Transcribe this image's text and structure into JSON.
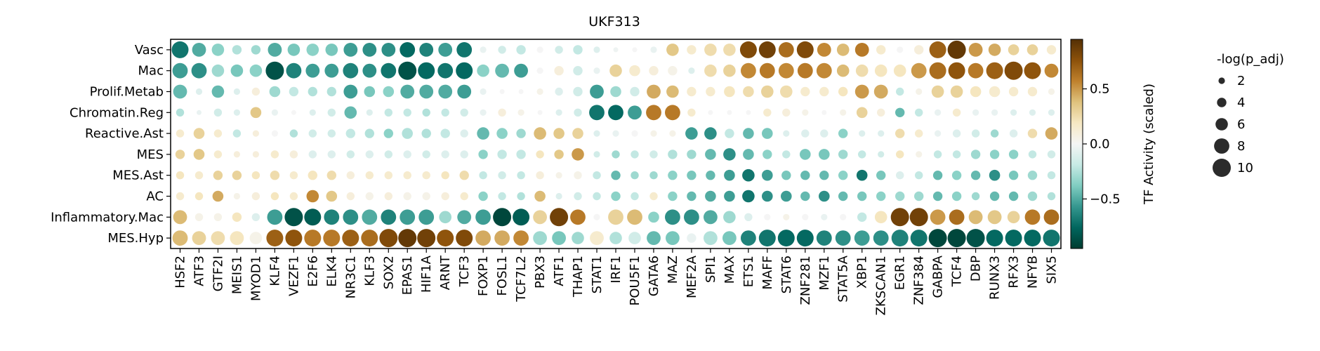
{
  "chart_data": {
    "type": "dotplot",
    "title": "UKF313",
    "xlabel": "",
    "ylabel": "",
    "rows": [
      "Vasc",
      "Mac",
      "Prolif.Metab",
      "Chromatin.Reg",
      "Reactive.Ast",
      "MES",
      "MES.Ast",
      "AC",
      "Inflammatory.Mac",
      "MES.Hyp"
    ],
    "columns": [
      "HSF2",
      "ATF3",
      "GTF2I",
      "MEIS1",
      "MYOD1",
      "KLF4",
      "VEZF1",
      "E2F6",
      "ELK4",
      "NR3C1",
      "KLF3",
      "SOX2",
      "EPAS1",
      "HIF1A",
      "ARNT",
      "TCF3",
      "FOXP1",
      "FOSL1",
      "TCF7L2",
      "PBX3",
      "ATF1",
      "THAP1",
      "STAT1",
      "IRF1",
      "POU5F1",
      "GATA6",
      "MAZ",
      "MEF2A",
      "SPI1",
      "MAX",
      "ETS1",
      "MAFF",
      "STAT6",
      "ZNF281",
      "MZF1",
      "STAT5A",
      "XBP1",
      "ZKSCAN1",
      "EGR1",
      "ZNF384",
      "GABPA",
      "TCF4",
      "DBP",
      "RUNX3",
      "RFX3",
      "NFYB",
      "SIX5"
    ],
    "color_values": [
      [
        -0.7,
        -0.5,
        -0.35,
        -0.25,
        -0.3,
        -0.5,
        -0.4,
        -0.35,
        -0.4,
        -0.55,
        -0.6,
        -0.6,
        -0.75,
        -0.65,
        -0.55,
        -0.7,
        -0.05,
        -0.15,
        -0.2,
        0.0,
        -0.15,
        -0.2,
        -0.1,
        -0.03,
        0.0,
        -0.05,
        0.35,
        0.15,
        0.25,
        0.25,
        0.8,
        0.85,
        0.65,
        0.8,
        0.55,
        0.4,
        0.6,
        0.15,
        0.0,
        0.1,
        0.7,
        0.9,
        0.5,
        0.45,
        0.3,
        0.3,
        0.15
      ],
      [
        -0.55,
        -0.6,
        -0.3,
        -0.4,
        -0.35,
        -0.85,
        -0.65,
        -0.55,
        -0.55,
        -0.65,
        -0.6,
        -0.7,
        -0.85,
        -0.75,
        -0.7,
        -0.75,
        -0.35,
        -0.45,
        -0.55,
        0.0,
        0.1,
        -0.15,
        -0.05,
        0.3,
        0.15,
        0.1,
        0.05,
        -0.1,
        0.25,
        0.3,
        0.55,
        0.6,
        0.55,
        0.6,
        0.55,
        0.4,
        0.25,
        0.2,
        0.2,
        0.5,
        0.65,
        0.75,
        0.6,
        0.7,
        0.8,
        0.75,
        0.55
      ],
      [
        -0.45,
        -0.1,
        -0.45,
        -0.1,
        0.1,
        -0.3,
        -0.2,
        -0.25,
        -0.25,
        -0.55,
        -0.4,
        -0.35,
        -0.5,
        -0.5,
        -0.5,
        -0.55,
        -0.05,
        0.0,
        0.0,
        0.05,
        -0.1,
        -0.15,
        -0.55,
        -0.3,
        -0.15,
        0.45,
        0.4,
        0.15,
        0.15,
        0.2,
        0.25,
        0.3,
        0.25,
        0.15,
        0.15,
        0.2,
        0.5,
        0.45,
        -0.2,
        0.05,
        0.3,
        0.3,
        0.2,
        0.15,
        0.15,
        0.15,
        0.05
      ],
      [
        -0.25,
        -0.05,
        -0.15,
        -0.1,
        0.35,
        -0.05,
        0.0,
        -0.1,
        -0.15,
        -0.45,
        -0.1,
        -0.2,
        -0.2,
        -0.25,
        -0.2,
        -0.15,
        -0.05,
        0.1,
        0.05,
        0.0,
        -0.1,
        -0.15,
        -0.7,
        -0.75,
        -0.55,
        0.6,
        0.6,
        0.15,
        0.0,
        0.0,
        0.0,
        0.15,
        0.1,
        0.05,
        0.0,
        0.05,
        0.3,
        0.1,
        -0.45,
        -0.2,
        -0.05,
        0.15,
        -0.05,
        -0.05,
        -0.1,
        -0.1,
        -0.1
      ],
      [
        0.15,
        0.3,
        0.15,
        -0.2,
        0.1,
        0.0,
        -0.25,
        -0.15,
        -0.15,
        -0.2,
        -0.25,
        -0.35,
        -0.25,
        -0.25,
        -0.2,
        -0.1,
        -0.45,
        -0.35,
        -0.3,
        0.4,
        0.35,
        0.3,
        -0.1,
        -0.05,
        0.0,
        0.05,
        0.05,
        -0.55,
        -0.6,
        -0.2,
        -0.45,
        -0.4,
        -0.1,
        -0.1,
        -0.1,
        -0.35,
        -0.1,
        -0.1,
        0.25,
        0.15,
        -0.05,
        -0.1,
        -0.15,
        -0.3,
        -0.1,
        0.25,
        0.45
      ],
      [
        0.3,
        0.35,
        0.15,
        0.1,
        0.1,
        0.15,
        0.1,
        -0.1,
        -0.1,
        -0.15,
        -0.1,
        -0.15,
        -0.1,
        -0.15,
        -0.1,
        -0.1,
        -0.35,
        -0.2,
        -0.2,
        0.2,
        0.35,
        0.5,
        -0.15,
        -0.3,
        -0.2,
        -0.15,
        -0.25,
        -0.3,
        -0.45,
        -0.6,
        -0.45,
        -0.35,
        -0.2,
        -0.4,
        -0.4,
        -0.3,
        -0.2,
        -0.15,
        0.2,
        0.05,
        -0.2,
        -0.2,
        -0.3,
        -0.35,
        -0.35,
        -0.2,
        -0.15
      ],
      [
        0.2,
        0.15,
        0.3,
        0.3,
        0.2,
        0.25,
        0.15,
        0.2,
        0.25,
        0.1,
        0.15,
        0.15,
        0.15,
        0.15,
        0.2,
        0.25,
        -0.2,
        -0.15,
        -0.2,
        0.1,
        0.05,
        0.05,
        -0.2,
        -0.45,
        -0.3,
        -0.3,
        -0.35,
        -0.4,
        -0.45,
        -0.55,
        -0.7,
        -0.55,
        -0.4,
        -0.45,
        -0.45,
        -0.35,
        -0.7,
        -0.4,
        -0.1,
        -0.2,
        -0.45,
        -0.35,
        -0.45,
        -0.6,
        -0.4,
        -0.3,
        -0.2
      ],
      [
        0.15,
        0.2,
        0.45,
        0.05,
        0.1,
        0.2,
        0.15,
        0.55,
        0.35,
        0.1,
        0.05,
        0.1,
        0.05,
        0.05,
        0.1,
        0.15,
        -0.35,
        -0.2,
        -0.25,
        0.4,
        -0.1,
        -0.15,
        -0.2,
        -0.35,
        -0.2,
        0.15,
        -0.35,
        -0.45,
        -0.5,
        -0.55,
        -0.7,
        -0.6,
        -0.55,
        -0.45,
        -0.6,
        -0.45,
        -0.4,
        -0.35,
        -0.3,
        -0.3,
        -0.45,
        -0.35,
        -0.3,
        -0.45,
        -0.45,
        -0.3,
        -0.25
      ],
      [
        0.4,
        0.05,
        0.05,
        0.2,
        -0.1,
        -0.55,
        -0.85,
        -0.8,
        -0.65,
        -0.6,
        -0.5,
        -0.65,
        -0.55,
        -0.55,
        -0.3,
        -0.5,
        -0.55,
        -0.9,
        -0.8,
        0.3,
        0.85,
        0.6,
        0.0,
        0.3,
        0.4,
        -0.35,
        -0.6,
        -0.6,
        -0.5,
        -0.3,
        -0.1,
        0.0,
        0.05,
        0.0,
        -0.05,
        0.0,
        -0.2,
        0.2,
        0.85,
        0.85,
        0.5,
        0.65,
        0.4,
        0.35,
        0.3,
        0.6,
        0.65
      ],
      [
        0.4,
        0.3,
        0.25,
        0.2,
        0.05,
        0.7,
        0.75,
        0.6,
        0.6,
        0.7,
        0.65,
        0.8,
        0.9,
        0.85,
        0.75,
        0.8,
        0.45,
        0.45,
        0.55,
        -0.3,
        -0.4,
        -0.3,
        0.15,
        -0.25,
        -0.15,
        -0.45,
        -0.4,
        -0.05,
        -0.25,
        -0.4,
        -0.65,
        -0.7,
        -0.75,
        -0.75,
        -0.65,
        -0.6,
        -0.55,
        -0.6,
        -0.65,
        -0.7,
        -0.9,
        -0.9,
        -0.85,
        -0.75,
        -0.75,
        -0.75,
        -0.7
      ]
    ],
    "size_values": [
      [
        9,
        7,
        6,
        4,
        4,
        7,
        6,
        6,
        6,
        7,
        7,
        7,
        8,
        7,
        7,
        8,
        2,
        3,
        4,
        2,
        3,
        4,
        2,
        1,
        1,
        2,
        6,
        4,
        6,
        6,
        9,
        9,
        8,
        9,
        7,
        6,
        7,
        4,
        2,
        4,
        9,
        10,
        7,
        6,
        5,
        5,
        4
      ],
      [
        8,
        8,
        6,
        6,
        6,
        10,
        8,
        7,
        7,
        8,
        7,
        8,
        10,
        9,
        8,
        9,
        6,
        7,
        7,
        2,
        4,
        4,
        2,
        6,
        5,
        4,
        4,
        2,
        6,
        6,
        8,
        8,
        8,
        8,
        8,
        6,
        6,
        6,
        6,
        8,
        9,
        9,
        8,
        9,
        10,
        9,
        7
      ],
      [
        7,
        2,
        6,
        2,
        3,
        5,
        4,
        4,
        4,
        7,
        5,
        5,
        7,
        7,
        7,
        7,
        2,
        1,
        1,
        2,
        3,
        4,
        7,
        5,
        4,
        7,
        6,
        4,
        4,
        5,
        5,
        6,
        6,
        4,
        4,
        4,
        7,
        7,
        3,
        2,
        6,
        6,
        5,
        5,
        4,
        4,
        2
      ],
      [
        3,
        1,
        3,
        2,
        5,
        2,
        1,
        2,
        3,
        6,
        2,
        3,
        3,
        3,
        3,
        3,
        2,
        3,
        2,
        1,
        2,
        3,
        8,
        8,
        7,
        8,
        8,
        3,
        1,
        1,
        1,
        3,
        3,
        2,
        1,
        2,
        5,
        3,
        4,
        3,
        2,
        3,
        2,
        2,
        2,
        2,
        2
      ],
      [
        3,
        5,
        3,
        3,
        2,
        2,
        3,
        3,
        3,
        4,
        4,
        4,
        5,
        4,
        4,
        3,
        6,
        5,
        4,
        6,
        5,
        5,
        2,
        2,
        2,
        2,
        2,
        6,
        6,
        4,
        5,
        5,
        2,
        3,
        3,
        4,
        2,
        2,
        4,
        3,
        2,
        3,
        3,
        3,
        3,
        4,
        6
      ],
      [
        4,
        5,
        3,
        2,
        2,
        3,
        3,
        3,
        3,
        3,
        3,
        3,
        3,
        3,
        3,
        3,
        4,
        4,
        4,
        3,
        4,
        6,
        2,
        3,
        3,
        3,
        4,
        4,
        5,
        6,
        5,
        4,
        3,
        5,
        5,
        4,
        3,
        2,
        3,
        2,
        3,
        3,
        4,
        4,
        4,
        3,
        3
      ],
      [
        3,
        3,
        4,
        4,
        3,
        4,
        3,
        4,
        4,
        3,
        3,
        3,
        3,
        3,
        3,
        4,
        3,
        3,
        3,
        3,
        2,
        3,
        3,
        4,
        3,
        3,
        4,
        4,
        4,
        5,
        6,
        5,
        4,
        4,
        4,
        4,
        5,
        4,
        3,
        3,
        4,
        4,
        4,
        5,
        4,
        4,
        3
      ],
      [
        3,
        3,
        5,
        2,
        3,
        3,
        3,
        6,
        5,
        3,
        3,
        3,
        3,
        3,
        3,
        3,
        4,
        3,
        3,
        5,
        2,
        3,
        3,
        4,
        3,
        3,
        4,
        4,
        5,
        5,
        6,
        5,
        5,
        4,
        5,
        4,
        4,
        4,
        4,
        4,
        4,
        4,
        3,
        4,
        4,
        4,
        3
      ],
      [
        7,
        3,
        3,
        4,
        3,
        8,
        10,
        9,
        8,
        8,
        8,
        8,
        8,
        8,
        6,
        7,
        8,
        10,
        9,
        7,
        10,
        8,
        2,
        8,
        8,
        5,
        8,
        8,
        7,
        6,
        3,
        2,
        2,
        2,
        2,
        2,
        4,
        6,
        10,
        10,
        8,
        8,
        7,
        7,
        6,
        8,
        8
      ],
      [
        8,
        7,
        7,
        7,
        6,
        9,
        9,
        9,
        9,
        9,
        9,
        10,
        10,
        10,
        9,
        9,
        8,
        8,
        8,
        7,
        7,
        6,
        7,
        6,
        6,
        7,
        7,
        4,
        7,
        7,
        8,
        9,
        9,
        9,
        8,
        8,
        8,
        8,
        9,
        9,
        10,
        10,
        10,
        9,
        9,
        9,
        9
      ]
    ],
    "color_range": [
      -0.95,
      0.95
    ],
    "colorbar_label": "TF Activity (scaled)",
    "colorbar_ticks": [
      -0.5,
      0.0,
      0.5
    ],
    "colorbar_tick_labels": [
      "−0.5",
      "0.0",
      "0.5"
    ],
    "size_legend_title": "-log(p_adj)",
    "size_legend_values": [
      2,
      4,
      6,
      8,
      10
    ],
    "size_legend_labels": [
      "2",
      "4",
      "6",
      "8",
      "10"
    ],
    "colormap": "BrBG_r"
  }
}
